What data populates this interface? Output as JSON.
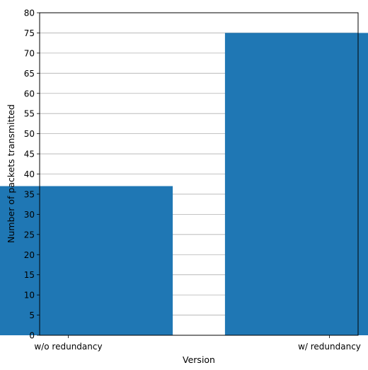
{
  "chart_data": {
    "type": "bar",
    "title": "",
    "xlabel": "Version",
    "ylabel": "Number of packets transmitted",
    "categories": [
      "w/o redundancy",
      "w/ redundancy"
    ],
    "values": [
      37,
      75
    ],
    "ylim": [
      0,
      80
    ],
    "y_ticks": [
      0,
      5,
      10,
      15,
      20,
      25,
      30,
      35,
      40,
      45,
      50,
      55,
      60,
      65,
      70,
      75,
      80
    ],
    "grid": "y-major",
    "bar_color": "#1f77b4",
    "grid_color": "#b0b0b0"
  }
}
